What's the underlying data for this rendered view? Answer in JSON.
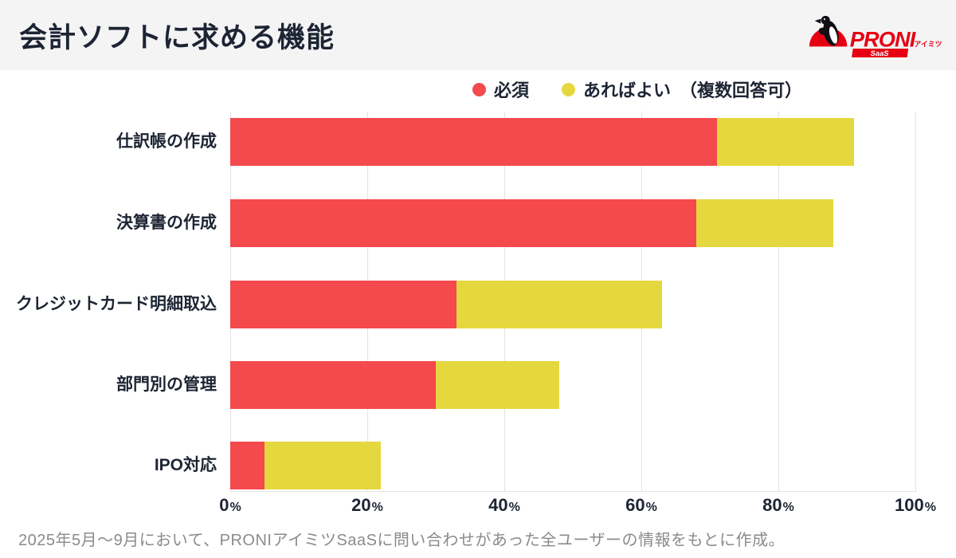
{
  "header": {
    "title": "会計ソフトに求める機能"
  },
  "logo": {
    "brand": "PRONI",
    "sub": "アイミツ",
    "badge": "SaaS",
    "color": "#E60012"
  },
  "legend": {
    "note": "（複数回答可）"
  },
  "chart_data": {
    "type": "bar",
    "orientation": "horizontal",
    "stacked": true,
    "title": "会計ソフトに求める機能",
    "categories": [
      "仕訳帳の作成",
      "決算書の作成",
      "クレジットカード明細取込",
      "部門別の管理",
      "IPO対応"
    ],
    "series": [
      {
        "name": "必須",
        "color": "#F4494D",
        "values": [
          71,
          68,
          33,
          30,
          5
        ]
      },
      {
        "name": "あればよい",
        "color": "#E5D83E",
        "values": [
          20,
          20,
          30,
          18,
          17
        ]
      }
    ],
    "totals": [
      91,
      88,
      63,
      48,
      22
    ],
    "x_ticks": [
      0,
      20,
      40,
      60,
      80,
      100
    ],
    "tick_suffix": "%",
    "xlim": [
      0,
      100
    ],
    "grid": true,
    "legend_position": "top",
    "annotation": "（複数回答可）"
  },
  "footer": {
    "text": "2025年5月〜9月において、PRONIアイミツSaaSに問い合わせがあった全ユーザーの情報をもとに作成。"
  },
  "colors": {
    "header_bg": "#F4F4F5",
    "text_dark": "#1D2433",
    "text_gray": "#8B8B8B",
    "gridline": "#E3E3E4",
    "bar_required": "#F4494D",
    "bar_nice": "#E5D83E",
    "brand_red": "#E60012"
  }
}
